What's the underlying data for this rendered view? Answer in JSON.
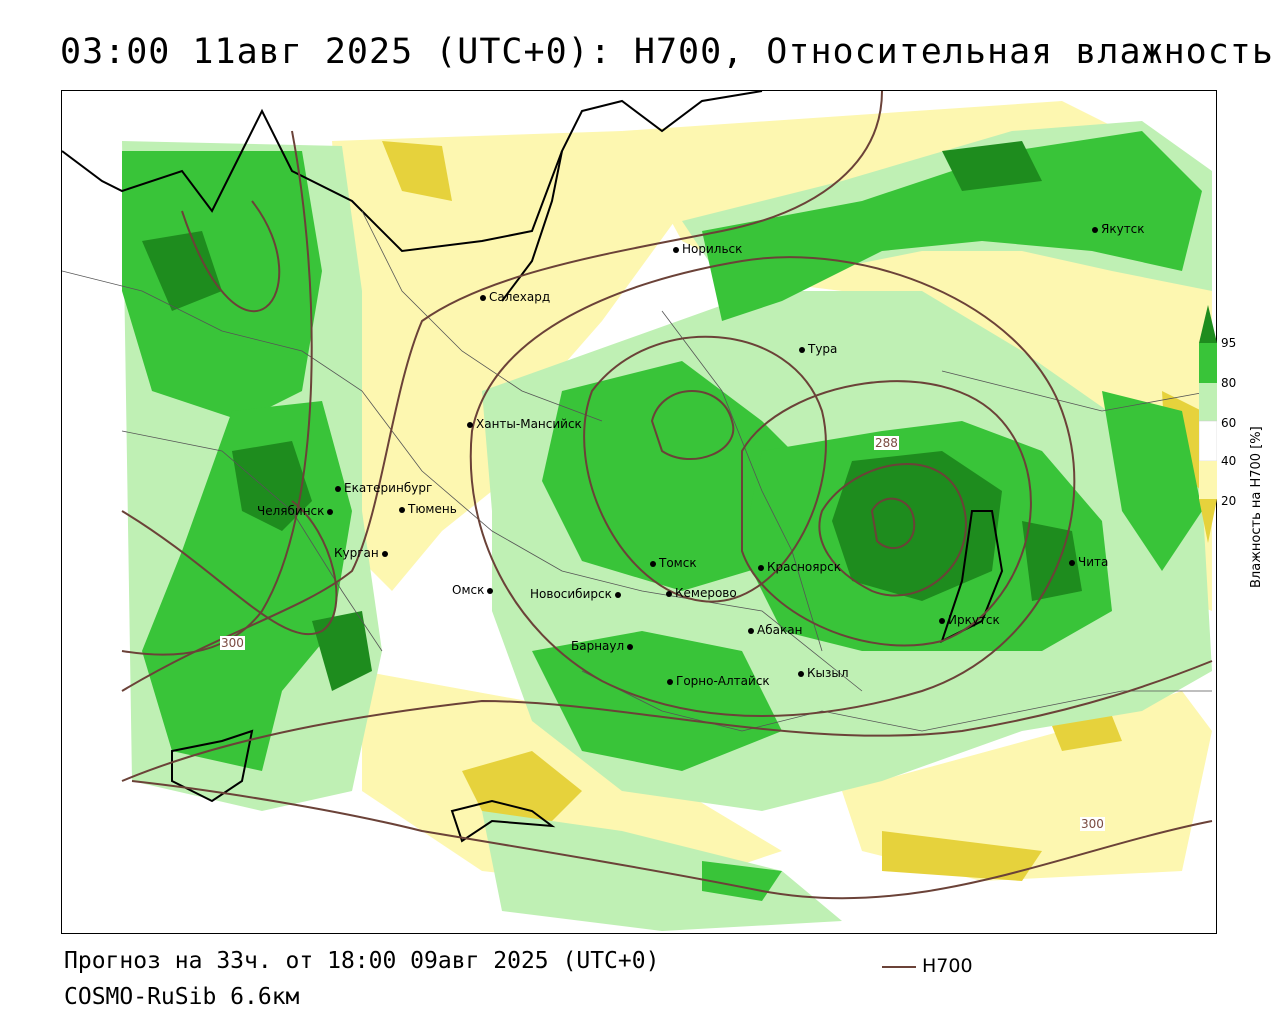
{
  "title": "03:00 11авг 2025 (UTC+0): H700, Относительная влажность",
  "footer": {
    "forecast": "Прогноз на 33ч. от 18:00 09авг 2025 (UTC+0)",
    "model": "COSMO-RuSib 6.6км",
    "legend_label": "H700"
  },
  "colorbar": {
    "title": "Влажность на H700 [%]",
    "ticks": [
      "95",
      "80",
      "60",
      "40",
      "20"
    ],
    "colors": {
      "very_moist": "#1e8c1e",
      "moist": "#39c439",
      "humid": "#bff0b4",
      "neutral": "#ffffff",
      "dry": "#fdf7b0",
      "very_dry": "#e6d23c"
    }
  },
  "contour_labels": [
    "300",
    "288",
    "300"
  ],
  "cities": [
    {
      "name": "Якутск"
    },
    {
      "name": "Норильск"
    },
    {
      "name": "Салехард"
    },
    {
      "name": "Тура"
    },
    {
      "name": "Ханты-Мансийск"
    },
    {
      "name": "Екатеринбург"
    },
    {
      "name": "Тюмень"
    },
    {
      "name": "Челябинск"
    },
    {
      "name": "Курган"
    },
    {
      "name": "Омск"
    },
    {
      "name": "Томск"
    },
    {
      "name": "Красноярск"
    },
    {
      "name": "Новосибирск"
    },
    {
      "name": "Кемерово"
    },
    {
      "name": "Барнаул"
    },
    {
      "name": "Абакан"
    },
    {
      "name": "Горно-Алтайск"
    },
    {
      "name": "Кызыл"
    },
    {
      "name": "Иркутск"
    },
    {
      "name": "Чита"
    }
  ]
}
